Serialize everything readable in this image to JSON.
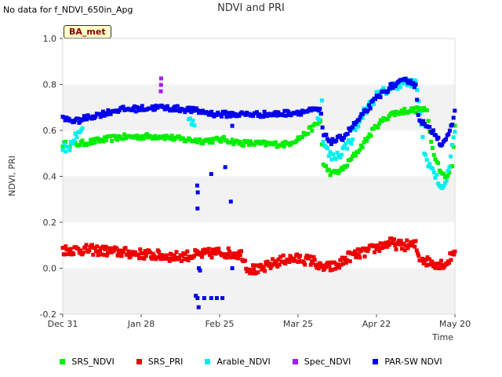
{
  "note": "No data for f_NDVI_650in_Apg",
  "site_badge": "BA_met",
  "chart_data": {
    "type": "scatter",
    "title": "NDVI and PRI",
    "xlabel": "Time",
    "ylabel": "NDVI, PRI",
    "ylim": [
      -0.2,
      1.0
    ],
    "xlim": [
      0,
      140
    ],
    "x_unit": "days since Dec 31",
    "y_ticks": [
      {
        "v": -0.2,
        "label": "-0.2"
      },
      {
        "v": 0.0,
        "label": "0.0"
      },
      {
        "v": 0.2,
        "label": "0.2"
      },
      {
        "v": 0.4,
        "label": "0.4"
      },
      {
        "v": 0.6,
        "label": "0.6"
      },
      {
        "v": 0.8,
        "label": "0.8"
      },
      {
        "v": 1.0,
        "label": "1.0"
      }
    ],
    "x_ticks": [
      {
        "v": 0,
        "label": "Dec 31"
      },
      {
        "v": 28,
        "label": "Jan 28"
      },
      {
        "v": 56,
        "label": "Feb 25"
      },
      {
        "v": 84,
        "label": "Mar 25"
      },
      {
        "v": 112,
        "label": "Apr 22"
      },
      {
        "v": 140,
        "label": "May 20"
      }
    ],
    "bands": [
      [
        -0.2,
        0.0
      ],
      [
        0.2,
        0.4
      ],
      [
        0.6,
        0.8
      ]
    ],
    "series": [
      {
        "name": "SRS_NDVI",
        "color": "#00ee00",
        "knots": [
          [
            0,
            0.54
          ],
          [
            5,
            0.54
          ],
          [
            10,
            0.55
          ],
          [
            20,
            0.57
          ],
          [
            35,
            0.575
          ],
          [
            43,
            0.56
          ],
          [
            50,
            0.555
          ],
          [
            58,
            0.56
          ],
          [
            63,
            0.545
          ],
          [
            75,
            0.54
          ],
          [
            80,
            0.54
          ],
          [
            85,
            0.57
          ],
          [
            90,
            0.62
          ],
          [
            92,
            0.64
          ],
          [
            93,
            0.45
          ],
          [
            96,
            0.41
          ],
          [
            100,
            0.43
          ],
          [
            106,
            0.52
          ],
          [
            112,
            0.62
          ],
          [
            117,
            0.67
          ],
          [
            122,
            0.685
          ],
          [
            127,
            0.69
          ],
          [
            130,
            0.685
          ],
          [
            132,
            0.52
          ],
          [
            135,
            0.42
          ],
          [
            137,
            0.39
          ],
          [
            139,
            0.45
          ],
          [
            140,
            0.62
          ]
        ],
        "gaps": [],
        "noise": 0.012,
        "step": 0.5
      },
      {
        "name": "SRS_PRI",
        "color": "#ee0000",
        "knots": [
          [
            0,
            0.08
          ],
          [
            10,
            0.08
          ],
          [
            20,
            0.07
          ],
          [
            30,
            0.06
          ],
          [
            40,
            0.05
          ],
          [
            50,
            0.06
          ],
          [
            56,
            0.07
          ],
          [
            64,
            0.06
          ],
          [
            66,
            0.0
          ],
          [
            70,
            -0.01
          ],
          [
            75,
            0.02
          ],
          [
            80,
            0.04
          ],
          [
            85,
            0.04
          ],
          [
            90,
            0.03
          ],
          [
            92,
            0.0
          ],
          [
            98,
            0.01
          ],
          [
            102,
            0.05
          ],
          [
            108,
            0.07
          ],
          [
            112,
            0.09
          ],
          [
            117,
            0.11
          ],
          [
            120,
            0.1
          ],
          [
            126,
            0.1
          ],
          [
            127,
            0.05
          ],
          [
            130,
            0.03
          ],
          [
            134,
            0.02
          ],
          [
            137,
            0.02
          ],
          [
            140,
            0.08
          ]
        ],
        "gaps": [],
        "noise": 0.022,
        "step": 0.35
      },
      {
        "name": "Arable_NDVI",
        "color": "#00eeee",
        "knots": [
          [
            0,
            0.53
          ],
          [
            2,
            0.51
          ],
          [
            4,
            0.57
          ],
          [
            6,
            0.6
          ],
          [
            46,
            0.64
          ],
          [
            92,
            0.66
          ],
          [
            92.5,
            0.75
          ],
          [
            93,
            0.54
          ],
          [
            96,
            0.48
          ],
          [
            99,
            0.5
          ],
          [
            103,
            0.56
          ],
          [
            107,
            0.67
          ],
          [
            112,
            0.75
          ],
          [
            118,
            0.79
          ],
          [
            121,
            0.81
          ],
          [
            126,
            0.8
          ],
          [
            127,
            0.74
          ],
          [
            129,
            0.5
          ],
          [
            133,
            0.4
          ],
          [
            136,
            0.34
          ],
          [
            138,
            0.45
          ],
          [
            140,
            0.6
          ]
        ],
        "gaps": [
          [
            7,
            45
          ],
          [
            47,
            91
          ]
        ],
        "noise": 0.02,
        "step": 0.5
      },
      {
        "name": "Spec_NDVI",
        "color": "#a020f0",
        "knots": [
          [
            35,
            0.77
          ],
          [
            35.2,
            0.85
          ]
        ],
        "gaps": [],
        "noise": 0.0,
        "step": 0.07
      },
      {
        "name": "PAR-SW NDVI",
        "color": "#0000ee",
        "knots": [
          [
            0,
            0.65
          ],
          [
            5,
            0.64
          ],
          [
            10,
            0.66
          ],
          [
            20,
            0.69
          ],
          [
            35,
            0.7
          ],
          [
            45,
            0.69
          ],
          [
            50,
            0.68
          ],
          [
            55,
            0.67
          ],
          [
            65,
            0.67
          ],
          [
            75,
            0.67
          ],
          [
            85,
            0.68
          ],
          [
            92,
            0.69
          ],
          [
            93,
            0.58
          ],
          [
            96,
            0.55
          ],
          [
            100,
            0.57
          ],
          [
            106,
            0.65
          ],
          [
            112,
            0.74
          ],
          [
            117,
            0.79
          ],
          [
            121,
            0.81
          ],
          [
            124,
            0.82
          ],
          [
            126,
            0.79
          ],
          [
            127,
            0.66
          ],
          [
            130,
            0.61
          ],
          [
            133,
            0.59
          ],
          [
            135,
            0.54
          ],
          [
            138,
            0.58
          ],
          [
            140,
            0.68
          ]
        ],
        "gaps": [],
        "noise": 0.012,
        "step": 0.45
      },
      {
        "name": "PAR-SW NDVI outliers",
        "color": "#0000ee",
        "legend": false,
        "points": [
          [
            48,
            0.36
          ],
          [
            48.2,
            0.33
          ],
          [
            48.1,
            0.26
          ],
          [
            47.5,
            -0.12
          ],
          [
            48.1,
            -0.13
          ],
          [
            48.5,
            -0.17
          ],
          [
            48.6,
            0.0
          ],
          [
            49,
            -0.01
          ],
          [
            50.5,
            -0.13
          ],
          [
            53,
            -0.13
          ],
          [
            55,
            -0.13
          ],
          [
            57,
            -0.13
          ],
          [
            60,
            0.29
          ],
          [
            60.5,
            0.62
          ],
          [
            60.5,
            0.0
          ],
          [
            53,
            0.41
          ],
          [
            58,
            0.44
          ]
        ]
      }
    ],
    "legend_labels": [
      "SRS_NDVI",
      "SRS_PRI",
      "Arable_NDVI",
      "Spec_NDVI",
      "PAR-SW NDVI"
    ],
    "legend_colors": [
      "#00ee00",
      "#ee0000",
      "#00eeee",
      "#a020f0",
      "#0000ee"
    ]
  }
}
